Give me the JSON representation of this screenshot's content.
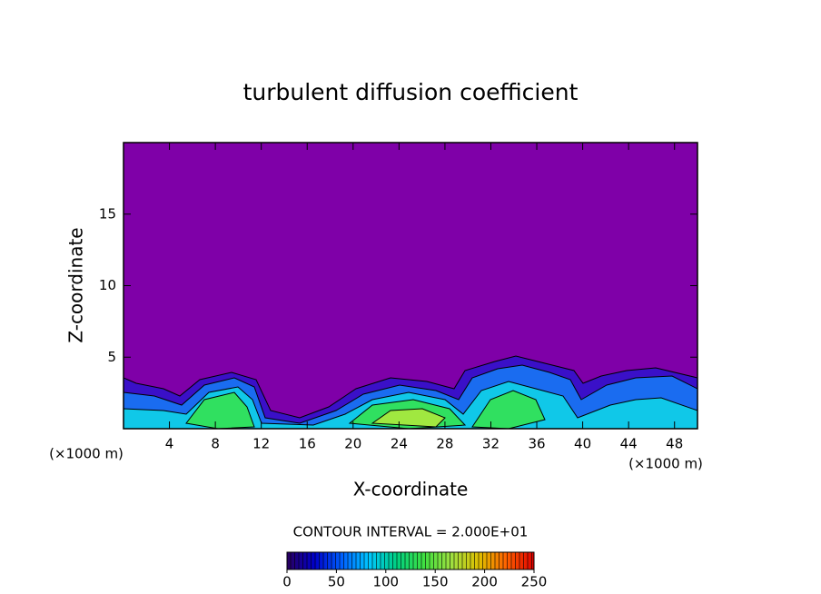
{
  "chart_data": {
    "type": "contour",
    "title": "turbulent diffusion coefficient",
    "x_label": "X-coordinate",
    "y_label": "Z-coordinate",
    "x_unit": "(×1000 m)",
    "y_unit": "(×1000 m)",
    "xlim": [
      0,
      50
    ],
    "ylim": [
      0,
      20
    ],
    "xticks": [
      4,
      8,
      12,
      16,
      20,
      24,
      28,
      32,
      36,
      40,
      44,
      48
    ],
    "yticks": [
      5,
      10,
      15
    ],
    "field_color": "#7f00a8",
    "contour_interval_label": "CONTOUR INTERVAL = 2.000E+01",
    "colorbar": {
      "clim": [
        0,
        250
      ],
      "ticks": [
        0,
        50,
        100,
        150,
        200,
        250
      ],
      "colors": [
        "#2a0060",
        "#0000c8",
        "#0060ff",
        "#00c8ff",
        "#00d080",
        "#40e040",
        "#a0e040",
        "#e0c000",
        "#ff6000",
        "#e00000"
      ]
    }
  }
}
